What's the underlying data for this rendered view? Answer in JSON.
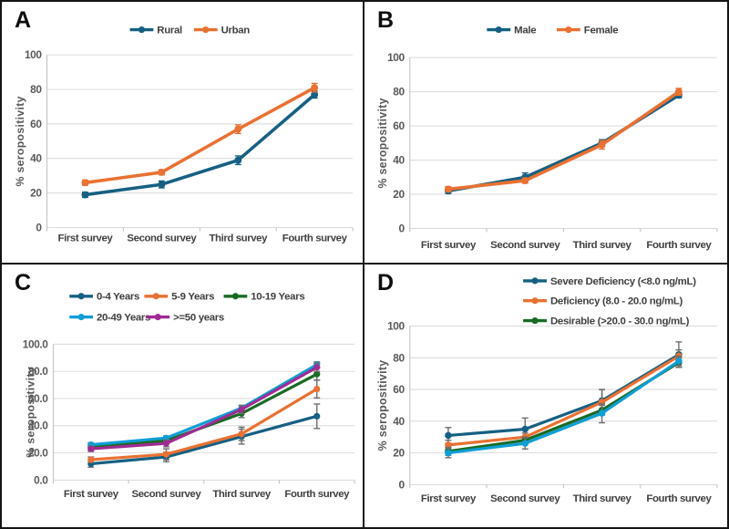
{
  "figure": {
    "description": "Four-panel line chart figure of % seropositivity across four serial surveys",
    "accent_colors": {
      "teal_blue": "#156082",
      "orange": "#E97132",
      "green": "#196B24",
      "cyan": "#0F9ED5",
      "magenta": "#A02B93"
    }
  },
  "chart_data": [
    {
      "panel": "A",
      "type": "line",
      "title": "",
      "categories": [
        "First survey",
        "Second survey",
        "Third survey",
        "Fourth survey"
      ],
      "xlabel": "",
      "ylabel": "% seropositivity",
      "ylim": [
        0,
        100
      ],
      "ytick_labels": [
        "0",
        "20",
        "40",
        "60",
        "80",
        "100"
      ],
      "grid": true,
      "legend_position": "top-center",
      "error_bars": "per-series-colored",
      "series": [
        {
          "name": "Rural",
          "color": "#156082",
          "values": [
            19,
            25,
            39,
            77
          ],
          "err": [
            1.5,
            2,
            2.5,
            2
          ]
        },
        {
          "name": "Urban",
          "color": "#E97132",
          "values": [
            26,
            32,
            57,
            81
          ],
          "err": [
            1.5,
            1.5,
            2.5,
            2.5
          ]
        }
      ]
    },
    {
      "panel": "B",
      "type": "line",
      "title": "",
      "categories": [
        "First survey",
        "Second survey",
        "Third survey",
        "Fourth survey"
      ],
      "xlabel": "",
      "ylabel": "% seropositivity",
      "ylim": [
        0,
        100
      ],
      "ytick_labels": [
        "0",
        "20",
        "40",
        "60",
        "80",
        "100"
      ],
      "grid": true,
      "legend_position": "top-center",
      "error_bars": "per-series-colored",
      "series": [
        {
          "name": "Male",
          "color": "#156082",
          "values": [
            22,
            30,
            50,
            78
          ],
          "err": [
            1.5,
            2.5,
            2,
            1.5
          ]
        },
        {
          "name": "Female",
          "color": "#E97132",
          "values": [
            23,
            28,
            49,
            80
          ],
          "err": [
            1.5,
            1.5,
            2.5,
            2
          ]
        }
      ]
    },
    {
      "panel": "C",
      "type": "line",
      "title": "",
      "categories": [
        "First survey",
        "Second survey",
        "Third survey",
        "Fourth survey"
      ],
      "xlabel": "",
      "ylabel": "% seropositivity",
      "ylim": [
        0,
        100
      ],
      "ytick_labels": [
        "0.0",
        "20.0",
        "40.0",
        "60.0",
        "80.0",
        "100.0"
      ],
      "grid": true,
      "legend_position": "top-left-two-rows",
      "error_bars": "gray",
      "series": [
        {
          "name": "0-4 Years",
          "color": "#156082",
          "values": [
            12,
            17,
            32,
            47
          ],
          "err": [
            2.5,
            3.5,
            5.5,
            9
          ]
        },
        {
          "name": "5-9 Years",
          "color": "#E97132",
          "values": [
            15,
            19,
            34,
            67
          ],
          "err": [
            2,
            4,
            5,
            6.5
          ]
        },
        {
          "name": "10-19 Years",
          "color": "#196B24",
          "values": [
            24,
            29,
            49,
            78
          ],
          "err": [
            2,
            2,
            3,
            4.5
          ]
        },
        {
          "name": "20-49  Years",
          "color": "#0F9ED5",
          "values": [
            26,
            31,
            53,
            85
          ],
          "err": [
            1.5,
            1.5,
            2,
            2
          ]
        },
        {
          "name": ">=50 years",
          "color": "#A02B93",
          "values": [
            23,
            27,
            52,
            83
          ],
          "err": [
            2,
            2.5,
            3,
            3
          ]
        }
      ]
    },
    {
      "panel": "D",
      "type": "line",
      "title": "",
      "categories": [
        "First survey",
        "Second survey",
        "Third survey",
        "Fourth survey"
      ],
      "xlabel": "",
      "ylabel": "% seropositivity",
      "ylim": [
        0,
        100
      ],
      "ytick_labels": [
        "0",
        "20",
        "40",
        "60",
        "80",
        "100"
      ],
      "grid": true,
      "legend_position": "top-right-three-rows",
      "error_bars": "gray",
      "series": [
        {
          "name": "Severe Deficiency (<8.0 ng/mL)",
          "color": "#156082",
          "values": [
            31,
            35,
            53,
            82
          ],
          "err": [
            5,
            7,
            7,
            8
          ]
        },
        {
          "name": "Deficiency (8.0 - 20.0 ng/mL)",
          "color": "#E97132",
          "values": [
            25,
            30,
            52,
            81
          ],
          "err": [
            3,
            2.5,
            8,
            4
          ]
        },
        {
          "name": "Desirable (>20.0 - 30.0 ng/mL)",
          "color": "#196B24",
          "values": [
            21,
            28,
            47,
            77
          ],
          "err": [
            2.5,
            2,
            3,
            3
          ]
        },
        {
          "name": "",
          "color": "#0F9ED5",
          "values": [
            20,
            26,
            45,
            78
          ],
          "err": [
            3,
            3.5,
            6,
            3
          ],
          "show_in_legend": false
        }
      ]
    }
  ]
}
